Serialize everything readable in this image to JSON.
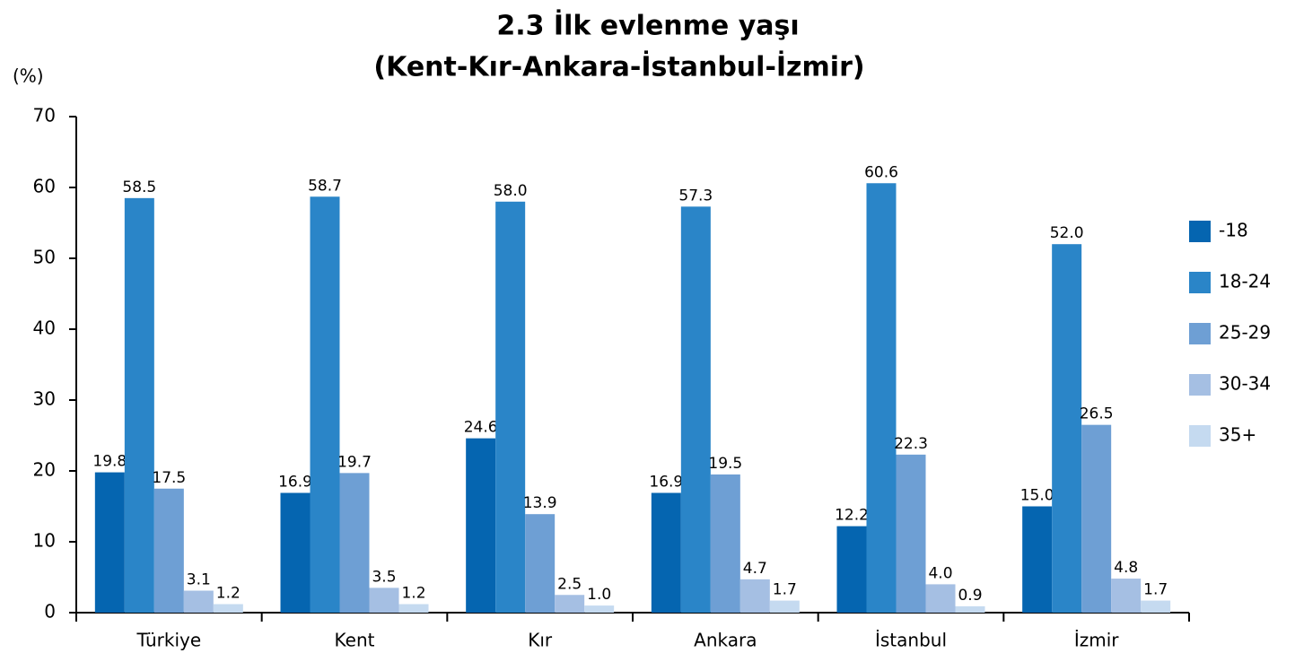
{
  "chart_data": {
    "type": "bar",
    "title": "2.3 İlk evlenme yaşı",
    "subtitle": "(Kent-Kır-Ankara-İstanbul-İzmir)",
    "y_label": "(%)",
    "categories": [
      "Türkiye",
      "Kent",
      "Kır",
      "Ankara",
      "İstanbul",
      "İzmir"
    ],
    "series": [
      {
        "name": "-18",
        "color": "#0565b0",
        "values": [
          19.8,
          16.9,
          24.6,
          16.9,
          12.2,
          15.0
        ],
        "value_labels": [
          "19.8",
          "16.9",
          "24.6",
          "16.9",
          "12.2",
          "15.0"
        ]
      },
      {
        "name": "18-24",
        "color": "#2a85c8",
        "values": [
          58.5,
          58.7,
          58.0,
          57.3,
          60.6,
          52.0
        ],
        "value_labels": [
          "58.5",
          "58.7",
          "58.0",
          "57.3",
          "60.6",
          "52.0"
        ]
      },
      {
        "name": "25-29",
        "color": "#6e9fd4",
        "values": [
          17.5,
          19.7,
          13.9,
          19.5,
          22.3,
          26.5
        ],
        "value_labels": [
          "17.5",
          "19.7",
          "13.9",
          "19.5",
          "22.3",
          "26.5"
        ]
      },
      {
        "name": "30-34",
        "color": "#a5bfe3",
        "values": [
          3.1,
          3.5,
          2.5,
          4.7,
          4.0,
          4.8
        ],
        "value_labels": [
          "3.1",
          "3.5",
          "2.5",
          "4.7",
          "4.0",
          "4.8"
        ]
      },
      {
        "name": "35+",
        "color": "#c5daf0",
        "values": [
          1.2,
          1.2,
          1.0,
          1.7,
          0.9,
          1.7
        ],
        "value_labels": [
          "1.2",
          "1.2",
          "1.0",
          "1.7",
          "0.9",
          "1.7"
        ]
      }
    ],
    "ylim": [
      0,
      70
    ],
    "yticks": [
      0,
      10,
      20,
      30,
      40,
      50,
      60,
      70
    ],
    "legend": "right"
  }
}
